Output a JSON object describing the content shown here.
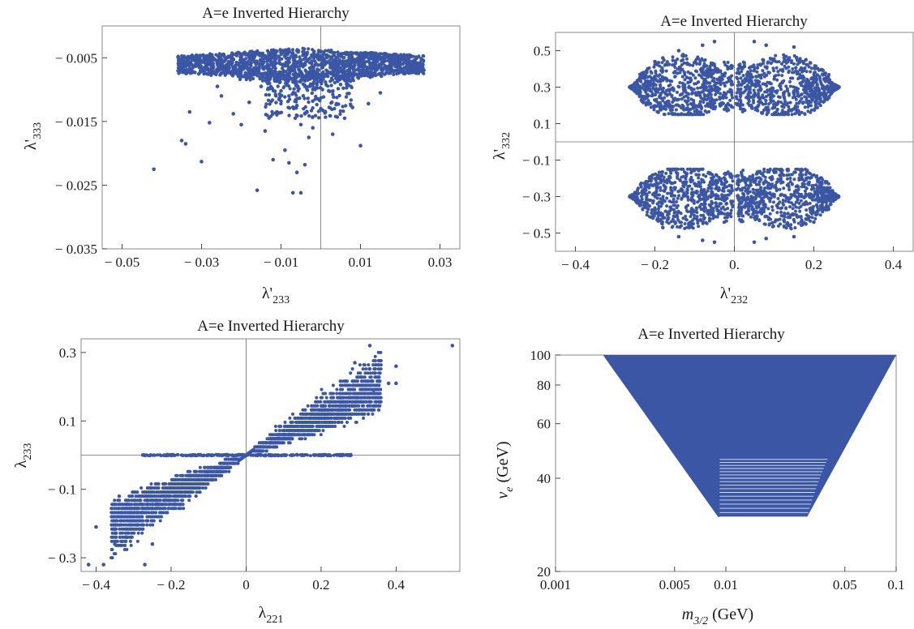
{
  "figure": {
    "colors": {
      "points": "#3a56a5",
      "frame": "#8a8a8a",
      "text": "#1a1a1a"
    }
  },
  "chart_data": [
    {
      "id": "p1",
      "type": "scatter",
      "title": "A=e  Inverted Hierarchy",
      "xlabel": {
        "base": "λ'",
        "sub": "233"
      },
      "ylabel": {
        "base": "λ'",
        "sub": "333"
      },
      "xlim": [
        -0.055,
        0.035
      ],
      "ylim": [
        -0.035,
        0.0
      ],
      "xticks": [
        -0.05,
        -0.03,
        -0.01,
        0.01,
        0.03
      ],
      "xtick_labels": [
        "− 0.05",
        "− 0.03",
        "− 0.01",
        "0.01",
        "0.03"
      ],
      "yticks": [
        -0.005,
        -0.015,
        -0.025,
        -0.035
      ],
      "ytick_labels": [
        "− 0.005",
        "− 0.015",
        "− 0.025",
        "− 0.035"
      ],
      "zero_lines": {
        "x": true,
        "y": false
      },
      "grid": false,
      "regions": [
        {
          "shape": "cap",
          "x": [
            -0.036,
            0.026
          ],
          "y_top": -0.0035,
          "y_bottom": -0.0075,
          "density": 1700
        }
      ],
      "points": [
        [
          -0.042,
          -0.0225
        ],
        [
          -0.035,
          -0.018
        ],
        [
          -0.034,
          -0.0185
        ],
        [
          -0.03,
          -0.0213
        ],
        [
          -0.033,
          -0.0135
        ],
        [
          -0.028,
          -0.0152
        ],
        [
          -0.025,
          -0.011
        ],
        [
          -0.022,
          -0.0138
        ],
        [
          -0.02,
          -0.0155
        ],
        [
          -0.018,
          -0.012
        ],
        [
          -0.016,
          -0.0258
        ],
        [
          -0.014,
          -0.0165
        ],
        [
          -0.012,
          -0.021
        ],
        [
          -0.011,
          -0.0135
        ],
        [
          -0.009,
          -0.0195
        ],
        [
          -0.008,
          -0.0215
        ],
        [
          -0.007,
          -0.0262
        ],
        [
          -0.006,
          -0.023
        ],
        [
          -0.005,
          -0.0262
        ],
        [
          -0.004,
          -0.0218
        ],
        [
          -0.003,
          -0.0175
        ],
        [
          -0.002,
          -0.016
        ],
        [
          0.003,
          -0.017
        ],
        [
          0.006,
          -0.0145
        ],
        [
          0.008,
          -0.0128
        ],
        [
          0.01,
          -0.0188
        ],
        [
          0.012,
          -0.0122
        ],
        [
          0.015,
          -0.0105
        ],
        [
          -0.026,
          -0.0095
        ],
        [
          -0.008,
          -0.011
        ],
        [
          -0.006,
          -0.0125
        ],
        [
          -0.004,
          -0.0138
        ],
        [
          -0.002,
          -0.0118
        ],
        [
          0.002,
          -0.0102
        ],
        [
          0.005,
          -0.0092
        ],
        [
          -0.015,
          -0.0095
        ],
        [
          -0.01,
          -0.0102
        ],
        [
          -0.005,
          -0.0155
        ],
        [
          0.0,
          -0.013
        ],
        [
          0.004,
          -0.0122
        ]
      ]
    },
    {
      "id": "p2",
      "type": "scatter",
      "title": "A=e  Inverted Hierarchy",
      "xlabel": {
        "base": "λ'",
        "sub": "232"
      },
      "ylabel": {
        "base": "λ'",
        "sub": "332"
      },
      "xlim": [
        -0.45,
        0.45
      ],
      "ylim": [
        -0.6,
        0.6
      ],
      "xticks": [
        -0.4,
        -0.2,
        0,
        0.2,
        0.4
      ],
      "xtick_labels": [
        "− 0.4",
        "− 0.2",
        "0.",
        "0.2",
        "0.4"
      ],
      "yticks": [
        0.5,
        0.3,
        0.1,
        -0.1,
        -0.3,
        -0.5
      ],
      "ytick_labels": [
        "0.5",
        "0.3",
        "0.1",
        "− 0.1",
        "− 0.3",
        "− 0.5"
      ],
      "zero_lines": {
        "x": true,
        "y": true
      },
      "grid": false,
      "regions": [
        {
          "shape": "wing",
          "y_sign": 1,
          "density": 1500
        },
        {
          "shape": "wing",
          "y_sign": -1,
          "density": 1500
        }
      ],
      "points": [
        [
          -0.14,
          0.5
        ],
        [
          -0.08,
          0.53
        ],
        [
          -0.05,
          0.55
        ],
        [
          0.05,
          0.55
        ],
        [
          0.08,
          0.53
        ],
        [
          0.15,
          0.52
        ],
        [
          0.18,
          0.45
        ],
        [
          -0.18,
          0.46
        ],
        [
          -0.14,
          -0.52
        ],
        [
          -0.08,
          -0.54
        ],
        [
          -0.05,
          -0.55
        ],
        [
          0.05,
          -0.55
        ],
        [
          0.08,
          -0.53
        ],
        [
          0.15,
          -0.52
        ],
        [
          0.18,
          -0.45
        ],
        [
          -0.18,
          -0.47
        ],
        [
          -0.2,
          0.44
        ],
        [
          0.2,
          -0.44
        ]
      ]
    },
    {
      "id": "p3",
      "type": "scatter",
      "title": "A=e  Inverted Hierarchy",
      "xlabel": {
        "base": "λ",
        "sub": "221"
      },
      "ylabel": {
        "base": "λ",
        "sub": "233"
      },
      "xlim": [
        -0.44,
        0.57
      ],
      "ylim": [
        -0.34,
        0.34
      ],
      "xticks": [
        -0.4,
        -0.2,
        0,
        0.2,
        0.4
      ],
      "xtick_labels": [
        "− 0.4",
        "− 0.2",
        "0",
        "0.2",
        "0.4"
      ],
      "yticks": [
        0.3,
        0.1,
        -0.1,
        -0.3
      ],
      "ytick_labels": [
        "0.3",
        "0.1",
        "− 0.1",
        "− 0.3"
      ],
      "zero_lines": {
        "x": true,
        "y": true
      },
      "grid": false,
      "regions": [
        {
          "shape": "band",
          "sign": 1,
          "density": 1400
        },
        {
          "shape": "band",
          "sign": -1,
          "density": 1400
        },
        {
          "shape": "flat",
          "x": [
            -0.28,
            0.28
          ],
          "y": 0.0,
          "density": 250
        }
      ],
      "points": [
        [
          0.55,
          0.32
        ],
        [
          -0.42,
          -0.32
        ],
        [
          -0.4,
          -0.21
        ],
        [
          -0.38,
          -0.32
        ],
        [
          0.4,
          0.26
        ],
        [
          0.33,
          0.32
        ],
        [
          0.4,
          0.21
        ],
        [
          -0.35,
          -0.26
        ],
        [
          -0.32,
          -0.24
        ],
        [
          0.38,
          0.21
        ],
        [
          -0.27,
          -0.32
        ],
        [
          0.29,
          0.27
        ],
        [
          -0.25,
          -0.26
        ],
        [
          0.34,
          0.19
        ]
      ]
    },
    {
      "id": "p4",
      "type": "area",
      "title": "A=e  Inverted Hierarchy",
      "xlabel": {
        "base": "m",
        "sub": "3/2",
        "suffix": " (GeV)"
      },
      "ylabel": {
        "base": "v",
        "sub": "e",
        "suffix": " (GeV)"
      },
      "xscale": "log",
      "yscale": "log",
      "xlim": [
        0.001,
        0.1
      ],
      "ylim": [
        20,
        100
      ],
      "xticks": [
        0.001,
        0.005,
        0.01,
        0.05,
        0.1
      ],
      "xtick_labels": [
        "0.001",
        "0.005",
        "0.01",
        "0.05",
        "0.1"
      ],
      "yticks": [
        20,
        40,
        60,
        80,
        100
      ],
      "ytick_labels": [
        "20",
        "40",
        "60",
        "80",
        "100"
      ],
      "grid": false,
      "region_polygon": [
        [
          0.0019,
          100
        ],
        [
          0.1,
          100
        ],
        [
          0.03,
          30
        ],
        [
          0.009,
          30
        ]
      ],
      "stripe_v": [
        30,
        31,
        32,
        33,
        34,
        35,
        36,
        37,
        38,
        39,
        40,
        41,
        42,
        43,
        44,
        45,
        46
      ],
      "stripe_m_min": 0.0092
    }
  ]
}
